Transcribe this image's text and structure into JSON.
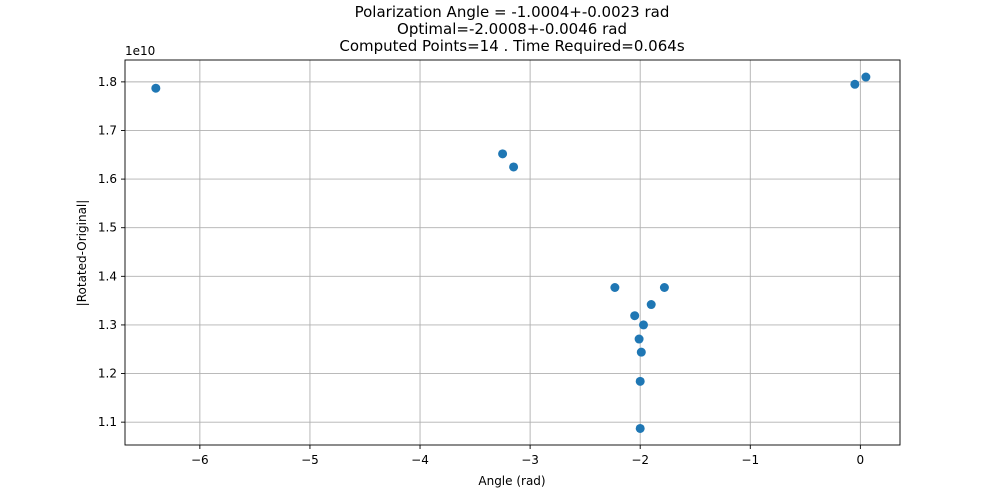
{
  "chart_data": {
    "type": "scatter",
    "title": [
      "Polarization Angle = -1.0004+-0.0023 rad",
      "Optimal=-2.0008+-0.0046 rad",
      "Computed Points=14 . Time Required=0.064s"
    ],
    "xlabel": "Angle (rad)",
    "ylabel": "|Rotated-Original|",
    "y_offset_label": "1e10",
    "xlim": [
      -6.68,
      0.36
    ],
    "ylim": [
      1.053,
      1.845
    ],
    "xticks": [
      -6,
      -5,
      -4,
      -3,
      -2,
      -1,
      0
    ],
    "xtick_labels": [
      "−6",
      "−5",
      "−4",
      "−3",
      "−2",
      "−1",
      "0"
    ],
    "yticks": [
      1.1,
      1.2,
      1.3,
      1.4,
      1.5,
      1.6,
      1.7,
      1.8
    ],
    "ytick_labels": [
      "1.1",
      "1.2",
      "1.3",
      "1.4",
      "1.5",
      "1.6",
      "1.7",
      "1.8"
    ],
    "grid": true,
    "marker_color": "#1f77b4",
    "series": [
      {
        "x": [
          -6.4,
          -3.25,
          -3.15,
          -2.23,
          -2.05,
          -1.97,
          -2.01,
          -1.99,
          -2.0,
          -2.0,
          -1.9,
          -1.78,
          -0.05,
          0.05
        ],
        "y": [
          1.787,
          1.652,
          1.625,
          1.377,
          1.319,
          1.3,
          1.271,
          1.244,
          1.184,
          1.087,
          1.342,
          1.377,
          1.795,
          1.81
        ]
      }
    ]
  }
}
